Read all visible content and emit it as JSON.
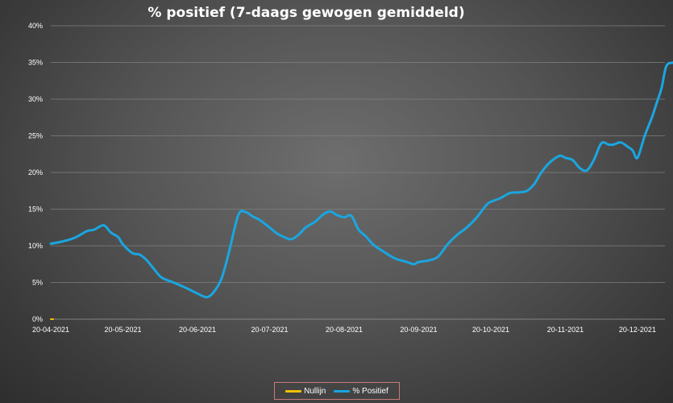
{
  "chart_data": {
    "type": "line",
    "title": "% positief (7-daags gewogen gemiddeld)",
    "xlabel": "",
    "ylabel": "",
    "x_tick_labels": [
      "20-04-2021",
      "20-05-2021",
      "20-06-2021",
      "20-07-2021",
      "20-08-2021",
      "20-09-2021",
      "20-10-2021",
      "20-11-2021",
      "20-12-2021"
    ],
    "y_tick_labels": [
      "0%",
      "5%",
      "10%",
      "15%",
      "20%",
      "25%",
      "30%",
      "35%",
      "40%"
    ],
    "ylim": [
      0,
      40
    ],
    "grid": "horizontal",
    "legend_position": "bottom",
    "series": [
      {
        "name": "Nullijn",
        "color": "#f5c000",
        "x": [
          "2021-04-20",
          "2021-04-21"
        ],
        "values": [
          0,
          0
        ]
      },
      {
        "name": "% Positief",
        "color": "#1aa6e0",
        "x": [
          "2021-04-20",
          "2021-04-25",
          "2021-04-30",
          "2021-05-05",
          "2021-05-08",
          "2021-05-12",
          "2021-05-15",
          "2021-05-18",
          "2021-05-20",
          "2021-05-24",
          "2021-05-27",
          "2021-05-30",
          "2021-06-02",
          "2021-06-05",
          "2021-06-10",
          "2021-06-15",
          "2021-06-20",
          "2021-06-24",
          "2021-06-27",
          "2021-06-30",
          "2021-07-03",
          "2021-07-07",
          "2021-07-10",
          "2021-07-13",
          "2021-07-16",
          "2021-07-20",
          "2021-07-23",
          "2021-07-26",
          "2021-07-29",
          "2021-08-01",
          "2021-08-04",
          "2021-08-08",
          "2021-08-11",
          "2021-08-14",
          "2021-08-17",
          "2021-08-20",
          "2021-08-23",
          "2021-08-26",
          "2021-08-29",
          "2021-09-01",
          "2021-09-05",
          "2021-09-10",
          "2021-09-15",
          "2021-09-18",
          "2021-09-20",
          "2021-09-24",
          "2021-09-28",
          "2021-10-02",
          "2021-10-06",
          "2021-10-10",
          "2021-10-14",
          "2021-10-18",
          "2021-10-20",
          "2021-10-24",
          "2021-10-28",
          "2021-11-01",
          "2021-11-04",
          "2021-11-07",
          "2021-11-10",
          "2021-11-13",
          "2021-11-16",
          "2021-11-18",
          "2021-11-20",
          "2021-11-23",
          "2021-11-26",
          "2021-11-29",
          "2021-12-02",
          "2021-12-05",
          "2021-12-08",
          "2021-12-10",
          "2021-12-13",
          "2021-12-16",
          "2021-12-18",
          "2021-12-20",
          "2021-12-23",
          "2021-12-26",
          "2021-12-28",
          "2021-12-30",
          "2022-01-01",
          "2022-01-04",
          "2022-01-07"
        ],
        "values": [
          10.3,
          10.6,
          11.1,
          12.0,
          12.2,
          12.8,
          11.8,
          11.2,
          10.2,
          9.0,
          8.8,
          8.0,
          6.8,
          5.7,
          5.0,
          4.3,
          3.5,
          3.0,
          3.8,
          5.5,
          9.0,
          14.2,
          14.6,
          14.0,
          13.5,
          12.5,
          11.7,
          11.2,
          10.9,
          11.5,
          12.5,
          13.3,
          14.2,
          14.7,
          14.2,
          13.9,
          14.1,
          12.2,
          11.3,
          10.2,
          9.3,
          8.3,
          7.8,
          7.5,
          7.8,
          8.0,
          8.5,
          10.2,
          11.5,
          12.5,
          13.8,
          15.5,
          16.0,
          16.5,
          17.2,
          17.3,
          17.5,
          18.4,
          20.0,
          21.2,
          22.0,
          22.3,
          22.0,
          21.7,
          20.6,
          20.3,
          21.8,
          24.0,
          23.8,
          23.8,
          24.1,
          23.5,
          23.0,
          22.0,
          25.0,
          27.5,
          29.5,
          31.5,
          34.5,
          35.0,
          35.2
        ]
      }
    ]
  }
}
